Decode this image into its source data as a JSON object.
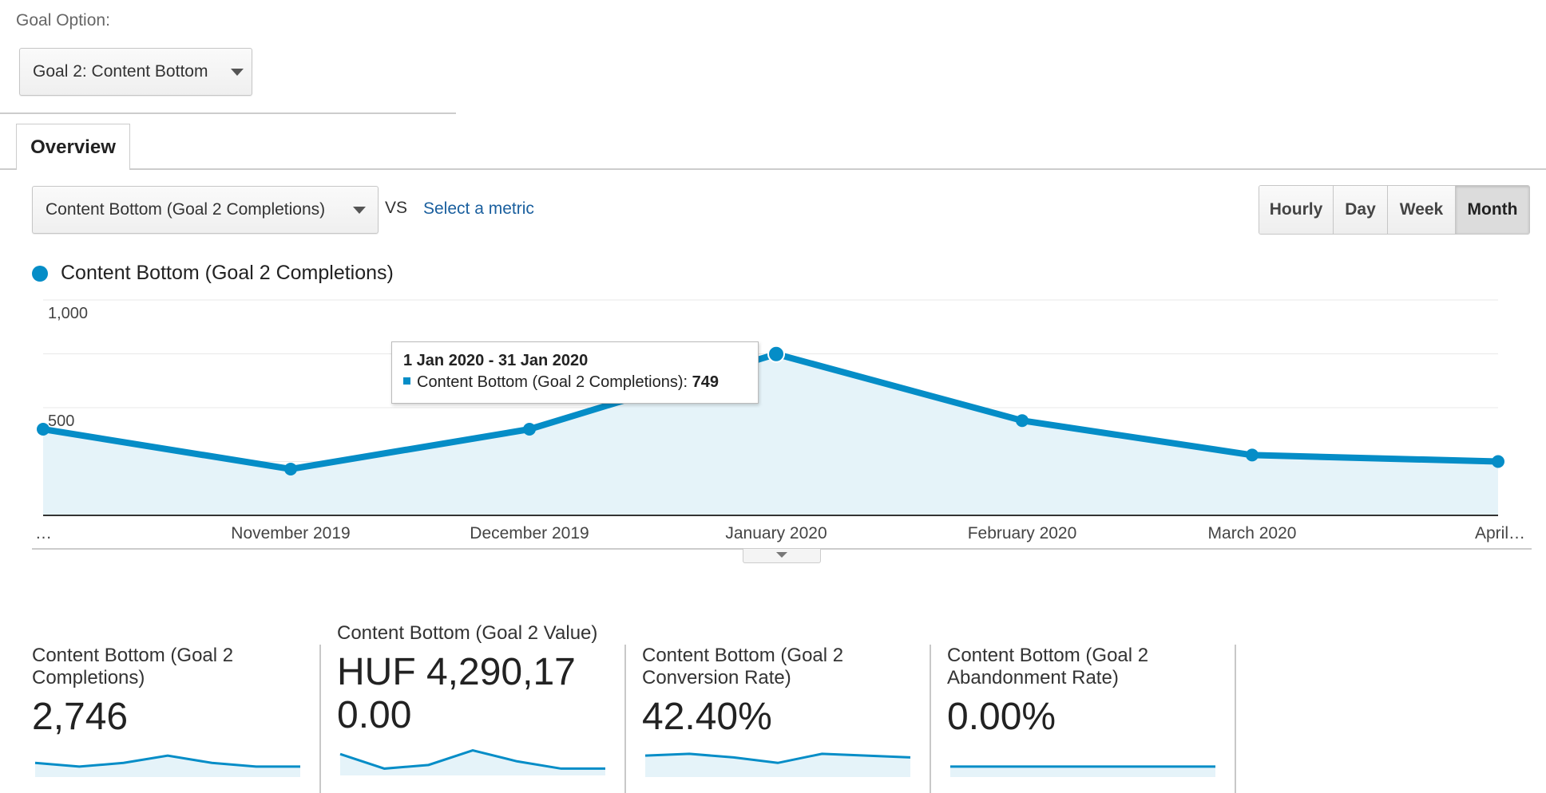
{
  "goal_option": {
    "label": "Goal Option:",
    "selected": "Goal 2: Content Bottom"
  },
  "tabs": [
    {
      "label": "Overview"
    }
  ],
  "toolbar": {
    "metric_selected": "Content Bottom (Goal 2 Completions)",
    "vs_label": "VS",
    "select_metric_link": "Select a metric",
    "periods": [
      "Hourly",
      "Day",
      "Week",
      "Month"
    ],
    "active_period": "Month"
  },
  "legend": {
    "label": "Content Bottom (Goal 2 Completions)",
    "color": "#058dc7"
  },
  "tooltip": {
    "title": "1 Jan 2020 - 31 Jan 2020",
    "series_label": "Content Bottom (Goal 2 Completions):",
    "value": "749"
  },
  "chart_data": {
    "type": "area",
    "x": [
      "…",
      "November 2019",
      "December 2019",
      "January 2020",
      "February 2020",
      "March 2020",
      "April…"
    ],
    "series": [
      {
        "name": "Content Bottom (Goal 2 Completions)",
        "values": [
          400,
          215,
          400,
          749,
          440,
          280,
          250
        ]
      }
    ],
    "ylim": [
      0,
      1000
    ],
    "y_ticks": [
      "1,000",
      "500"
    ],
    "grid": true,
    "line_color": "#058dc7",
    "fill_color": "#e5f3f9"
  },
  "scorecards": [
    {
      "title": "Content Bottom (Goal 2 Completions)",
      "value": "2,746",
      "sparkline": [
        3,
        2,
        3,
        5,
        3,
        2,
        2
      ]
    },
    {
      "title": "Content Bottom (Goal 2 Value)",
      "value": "HUF 4,290,170.00",
      "sparkline": [
        5,
        1,
        2,
        6,
        3,
        1,
        1
      ]
    },
    {
      "title": "Content Bottom (Goal 2 Conversion Rate)",
      "value": "42.40%",
      "sparkline": [
        5,
        5.5,
        4.5,
        3,
        5.5,
        5,
        4.5
      ]
    },
    {
      "title": "Content Bottom (Goal 2 Abandonment Rate)",
      "value": "0.00%",
      "sparkline": [
        2,
        2,
        2,
        2,
        2,
        2,
        2
      ]
    }
  ]
}
